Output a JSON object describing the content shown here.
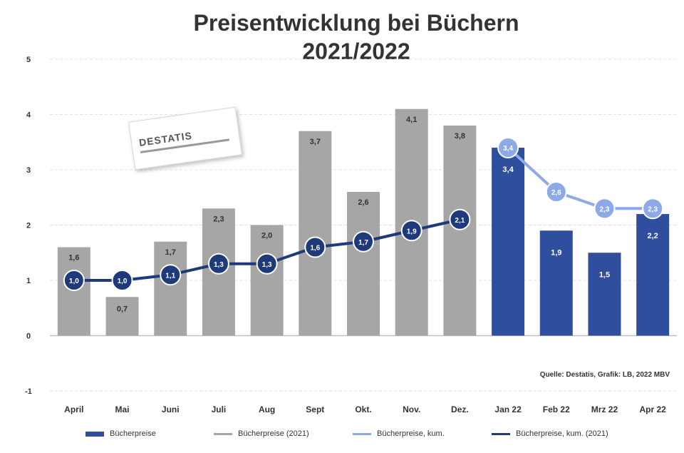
{
  "chart_data": {
    "type": "bar",
    "title": "Preisentwicklung bei Büchern",
    "subtitle": "2021/2022",
    "categories": [
      "April",
      "Mai",
      "Juni",
      "Juli",
      "Aug",
      "Sept",
      "Okt.",
      "Nov.",
      "Dez.",
      "Jan 22",
      "Feb 22",
      "Mrz 22",
      "Apr 22"
    ],
    "y_ticks": [
      -1,
      0,
      1,
      2,
      3,
      4,
      5
    ],
    "ylim": [
      -1,
      5
    ],
    "grid": true,
    "source": "Quelle: Destatis, Grafik: LB, 2022 MBV",
    "bar_series": [
      {
        "name": "Bücherpreise",
        "values": [
          null,
          null,
          null,
          null,
          null,
          null,
          null,
          null,
          null,
          3.4,
          1.9,
          1.5,
          2.2
        ],
        "labels": [
          "",
          "",
          "",
          "",
          "",
          "",
          "",
          "",
          "",
          "3,4",
          "1,9",
          "1,5",
          "2,2"
        ],
        "color": "#2f4f9e"
      },
      {
        "name": "Bücherpreise (2021)",
        "values": [
          1.6,
          0.7,
          1.7,
          2.3,
          2.0,
          3.7,
          2.6,
          4.1,
          3.8,
          null,
          null,
          null,
          null
        ],
        "labels": [
          "1,6",
          "0,7",
          "1,7",
          "2,3",
          "2,0",
          "3,7",
          "2,6",
          "4,1",
          "3,8",
          "",
          "",
          "",
          ""
        ],
        "color": "#a6a6a6"
      }
    ],
    "line_series": [
      {
        "name": "Bücherpreise, kum.",
        "values": [
          null,
          null,
          null,
          null,
          null,
          null,
          null,
          null,
          null,
          3.4,
          2.6,
          2.3,
          2.3
        ],
        "labels": [
          "",
          "",
          "",
          "",
          "",
          "",
          "",
          "",
          "",
          "3,4",
          "2,6",
          "2,3",
          "2,3"
        ],
        "color": "#8ea9e8"
      },
      {
        "name": "Bücherpreise, kum. (2021)",
        "values": [
          1.0,
          1.0,
          1.1,
          1.3,
          1.3,
          1.6,
          1.7,
          1.9,
          2.1,
          null,
          null,
          null,
          null
        ],
        "labels": [
          "1,0",
          "1,0",
          "1,1",
          "1,3",
          "1,3",
          "1,6",
          "1,7",
          "1,9",
          "2,1",
          "",
          "",
          "",
          ""
        ],
        "color": "#1f3a7a"
      }
    ]
  },
  "logo": {
    "text": "DESTATIS"
  },
  "legend": [
    {
      "label": "Bücherpreise",
      "kind": "bar",
      "color": "#2f4f9e"
    },
    {
      "label": "Bücherpreise (2021)",
      "kind": "bar",
      "color": "#a6a6a6"
    },
    {
      "label": "Bücherpreise, kum.",
      "kind": "line",
      "color": "#8ea9e8"
    },
    {
      "label": "Bücherpreise, kum. (2021)",
      "kind": "line",
      "color": "#1f3a7a"
    }
  ]
}
